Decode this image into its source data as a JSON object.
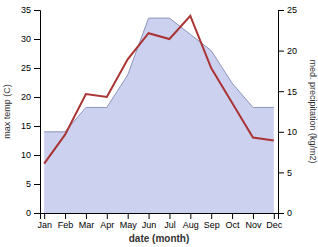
{
  "chart_data": {
    "type": "line",
    "categories": [
      "Jan",
      "Feb",
      "Mar",
      "Apr",
      "May",
      "Jun",
      "Jul",
      "Aug",
      "Sep",
      "Oct",
      "Nov",
      "Dec"
    ],
    "series": [
      {
        "type": "line",
        "color": "#aa3333",
        "values": [
          8.5,
          13.5,
          20.5,
          20.0,
          26.5,
          31.0,
          30.0,
          34.0,
          25.0,
          19.0,
          13.0,
          12.5
        ]
      },
      {
        "type": "area",
        "axis": "y2",
        "color": "#b0b8e8",
        "values": [
          10.0,
          10.0,
          13.0,
          13.0,
          17.0,
          24.0,
          24.0,
          22.0,
          20.0,
          16.0,
          13.0,
          13.0
        ]
      }
    ],
    "xlabel": "date (month)",
    "ylabel": "max temp (C)",
    "y2label": "med. precipitation (kg/m2)",
    "ylim": [
      0,
      35
    ],
    "yticks": [
      0,
      5,
      10,
      15,
      20,
      25,
      30,
      35
    ],
    "y2lim": [
      0,
      25
    ],
    "y2ticks": [
      0,
      5,
      10,
      15,
      20,
      25
    ],
    "grid": false
  }
}
